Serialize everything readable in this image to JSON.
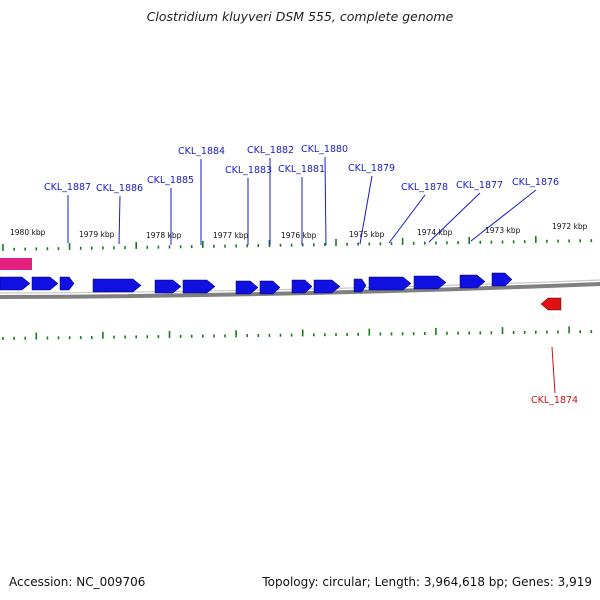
{
  "title": "Clostridium kluyveri DSM 555, complete genome",
  "footer": {
    "accession": "Accession: NC_009706",
    "topology": "Topology: circular; Length: 3,964,618 bp; Genes: 3,919"
  },
  "colors": {
    "gene_label_top": "#1a1acc",
    "gene_label_bottom": "#cc1111",
    "gene_forward": "#1010e0",
    "gene_reverse": "#e01010",
    "feature_magenta": "#e0207a",
    "tick": "#1a7a1a",
    "backbone": "#808080"
  },
  "scale_labels": [
    "1980 kbp",
    "1979 kbp",
    "1978 kbp",
    "1977 kbp",
    "1976 kbp",
    "1975 kbp",
    "1974 kbp",
    "1973 kbp",
    "1972 kbp"
  ],
  "gene_labels_top": [
    "CKL_1887",
    "CKL_1886",
    "CKL_1885",
    "CKL_1884",
    "CKL_1883",
    "CKL_1882",
    "CKL_1881",
    "CKL_1880",
    "CKL_1879",
    "CKL_1878",
    "CKL_1877",
    "CKL_1876"
  ],
  "gene_labels_bottom": [
    "CKL_1874"
  ]
}
